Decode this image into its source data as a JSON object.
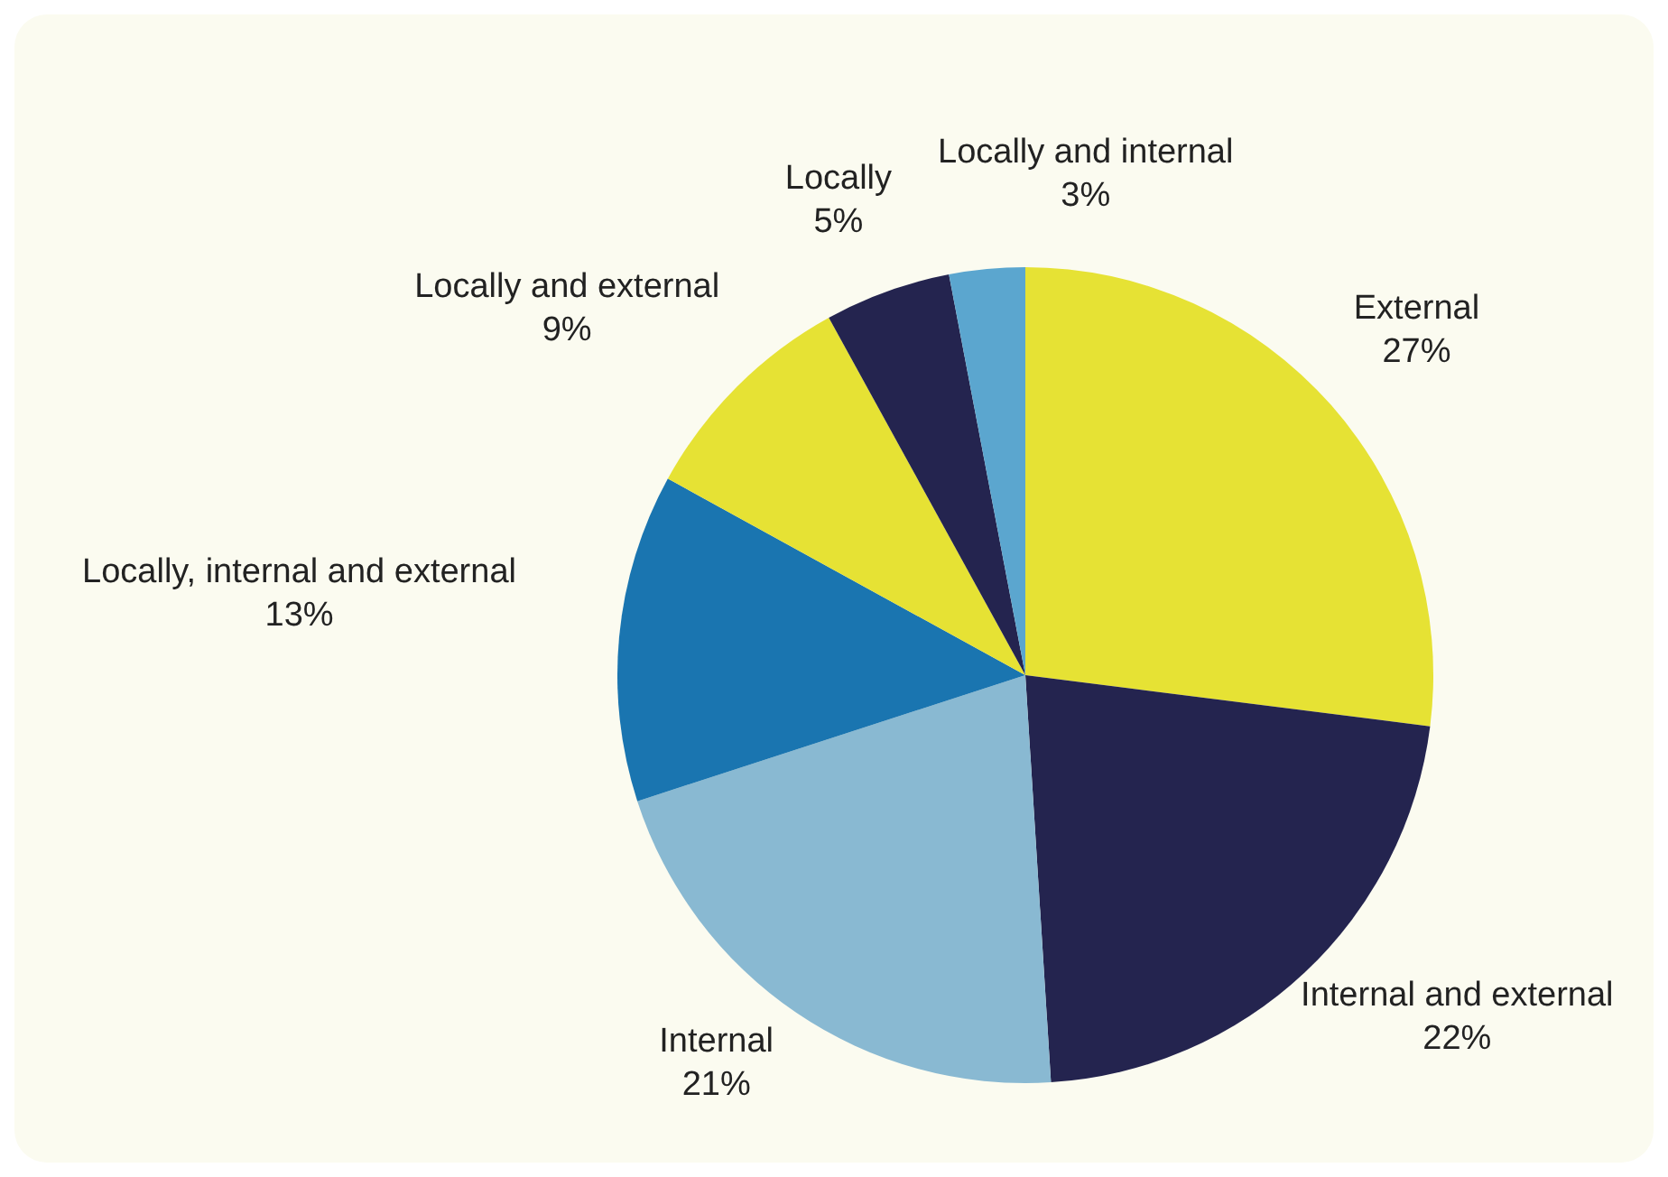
{
  "chart_data": {
    "type": "pie",
    "categories": [
      "External",
      "Internal and external",
      "Internal",
      "Locally, internal and external",
      "Locally and external",
      "Locally",
      "Locally and internal"
    ],
    "values": [
      27,
      22,
      21,
      13,
      9,
      5,
      3
    ],
    "value_labels": [
      "27%",
      "22%",
      "21%",
      "13%",
      "9%",
      "5%",
      "3%"
    ],
    "colors": [
      "#e6e234",
      "#24244f",
      "#89b9d2",
      "#1a75b0",
      "#e6e234",
      "#24244f",
      "#5ba6cf"
    ],
    "legend": false
  }
}
